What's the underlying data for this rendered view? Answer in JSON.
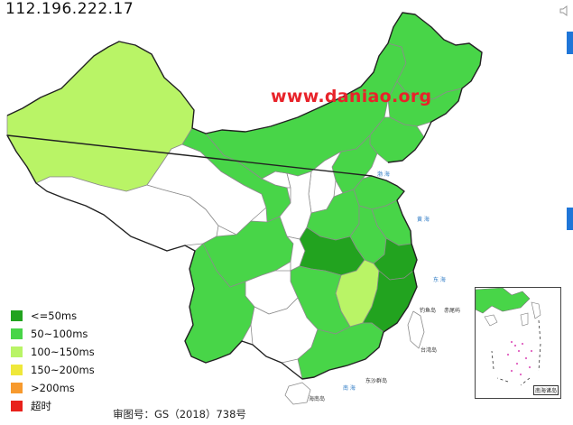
{
  "header": {
    "ip_address": "112.196.222.17"
  },
  "watermark": {
    "text": "www.daniao.org"
  },
  "legend": {
    "items": [
      {
        "label": "<=50ms",
        "color": "#22a31f"
      },
      {
        "label": "50~100ms",
        "color": "#48d548"
      },
      {
        "label": "100~150ms",
        "color": "#b9f466"
      },
      {
        "label": "150~200ms",
        "color": "#efe83a"
      },
      {
        "label": ">200ms",
        "color": "#f79a2e"
      },
      {
        "label": "超时",
        "color": "#e8211b"
      }
    ]
  },
  "footer": {
    "approval_number": "审图号：GS（2018）738号"
  },
  "colors": {
    "level_lte50": "#22a31f",
    "level_50_100": "#48d548",
    "level_100_150": "#b9f466",
    "no_data": "#ffffff",
    "border": "#999999",
    "coast": "#222222",
    "sea_text": "#2a78c4"
  },
  "map": {
    "province_levels": {
      "xinjiang": "100~150ms",
      "gansu": "50~100ms",
      "inner_mongolia": "50~100ms",
      "heilongjiang": "50~100ms",
      "jilin": "50~100ms",
      "liaoning": "50~100ms",
      "beijing": "50~100ms",
      "hebei": "50~100ms",
      "shandong": "50~100ms",
      "jiangsu": "50~100ms",
      "anhui": "50~100ms",
      "henan": "50~100ms",
      "hubei": "<=50ms",
      "zhejiang": "<=50ms",
      "fujian": "<=50ms",
      "jiangxi": "100~150ms",
      "hunan": "50~100ms",
      "sichuan": "50~100ms",
      "yunnan": "50~100ms",
      "guangdong": "50~100ms",
      "hainan": "no data"
    },
    "inset_label": "南海诸岛"
  }
}
